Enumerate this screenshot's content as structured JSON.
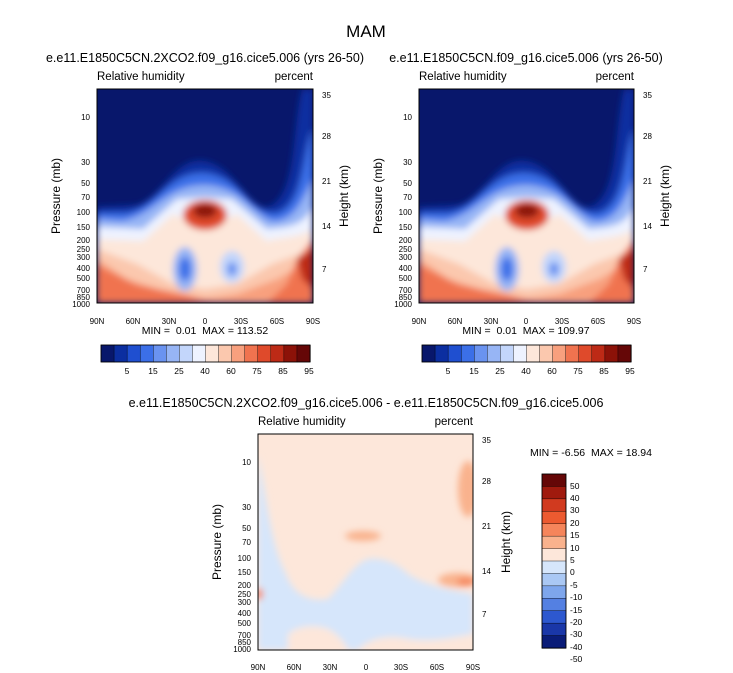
{
  "figure": {
    "title": "MAM"
  },
  "chart_data": [
    {
      "type": "heatmap",
      "title": "e.e11.E1850C5CN.2XCO2.f09_g16.cice5.006 (yrs 26-50)",
      "left_label": "Relative humidity",
      "right_label": "percent",
      "xlabel": "",
      "ylabel": "Pressure (mb)",
      "y2label": "Height (km)",
      "x_ticks": [
        "90N",
        "60N",
        "30N",
        "0",
        "30S",
        "60S",
        "90S"
      ],
      "y_ticks": [
        "10",
        "30",
        "50",
        "70",
        "100",
        "150",
        "200",
        "250",
        "300",
        "400",
        "500",
        "700",
        "850",
        "1000"
      ],
      "y2_ticks": [
        "35",
        "28",
        "21",
        "14",
        "7"
      ],
      "stats": "MIN =  0.01  MAX = 113.52",
      "colorbar_labels": [
        "5",
        "15",
        "25",
        "40",
        "60",
        "75",
        "85",
        "95"
      ],
      "levels": [
        5,
        10,
        15,
        20,
        25,
        30,
        40,
        50,
        60,
        70,
        75,
        80,
        85,
        90,
        95
      ]
    },
    {
      "type": "heatmap",
      "title": "e.e11.E1850C5CN.f09_g16.cice5.006 (yrs 26-50)",
      "left_label": "Relative humidity",
      "right_label": "percent",
      "xlabel": "",
      "ylabel": "Pressure (mb)",
      "y2label": "Height (km)",
      "x_ticks": [
        "90N",
        "60N",
        "30N",
        "0",
        "30S",
        "60S",
        "90S"
      ],
      "y_ticks": [
        "10",
        "30",
        "50",
        "70",
        "100",
        "150",
        "200",
        "250",
        "300",
        "400",
        "500",
        "700",
        "850",
        "1000"
      ],
      "y2_ticks": [
        "35",
        "28",
        "21",
        "14",
        "7"
      ],
      "stats": "MIN =  0.01  MAX = 109.97",
      "colorbar_labels": [
        "5",
        "15",
        "25",
        "40",
        "60",
        "75",
        "85",
        "95"
      ],
      "levels": [
        5,
        10,
        15,
        20,
        25,
        30,
        40,
        50,
        60,
        70,
        75,
        80,
        85,
        90,
        95
      ]
    },
    {
      "type": "heatmap",
      "title": "e.e11.E1850C5CN.2XCO2.f09_g16.cice5.006 - e.e11.E1850C5CN.f09_g16.cice5.006",
      "left_label": "Relative humidity",
      "right_label": "percent",
      "xlabel": "",
      "ylabel": "Pressure (mb)",
      "y2label": "Height (km)",
      "x_ticks": [
        "90N",
        "60N",
        "30N",
        "0",
        "30S",
        "60S",
        "90S"
      ],
      "y_ticks": [
        "10",
        "30",
        "50",
        "70",
        "100",
        "150",
        "200",
        "250",
        "300",
        "400",
        "500",
        "700",
        "850",
        "1000"
      ],
      "y2_ticks": [
        "35",
        "28",
        "21",
        "14",
        "7"
      ],
      "stats": "MIN = -6.56  MAX = 18.94",
      "colorbar_labels": [
        "50",
        "40",
        "30",
        "20",
        "15",
        "10",
        "5",
        "0",
        "-5",
        "-10",
        "-15",
        "-20",
        "-30",
        "-40",
        "-50"
      ]
    }
  ],
  "colors": {
    "abs_palette": [
      "#08176b",
      "#0b2ea0",
      "#1f4fd0",
      "#3b6fe8",
      "#6a93f0",
      "#97b5f5",
      "#c3d6fb",
      "#eef3ff",
      "#fde7da",
      "#fbc8ae",
      "#f8a07e",
      "#f0734f",
      "#df4a2b",
      "#bd2a16",
      "#8c1208",
      "#650707"
    ],
    "diff_palette": [
      "#650707",
      "#a01a0e",
      "#d13a1f",
      "#ec5a30",
      "#f5855b",
      "#f9b28d",
      "#fde7da",
      "#d6e6fb",
      "#aac8f4",
      "#7ea6ec",
      "#5480e2",
      "#2d58cf",
      "#1a37a8",
      "#0a1c78"
    ],
    "frame": "#000000"
  }
}
